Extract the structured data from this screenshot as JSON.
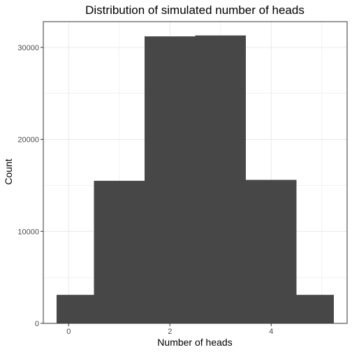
{
  "chart_data": {
    "type": "bar",
    "title": "Distribution of simulated number of heads",
    "xlabel": "Number of heads",
    "ylabel": "Count",
    "categories": [
      0,
      1,
      2,
      3,
      4,
      5
    ],
    "values": [
      3100,
      15500,
      31200,
      31300,
      15600,
      3100
    ],
    "xlim": [
      -0.5,
      5.5
    ],
    "ylim": [
      0,
      32800
    ],
    "x_ticks": [
      0,
      2,
      4
    ],
    "y_ticks": [
      0,
      10000,
      20000,
      30000
    ],
    "bar_color": "#474747",
    "grid": true,
    "grid_color": "#ebebeb",
    "panel_border_color": "#333333",
    "legend": "none"
  }
}
